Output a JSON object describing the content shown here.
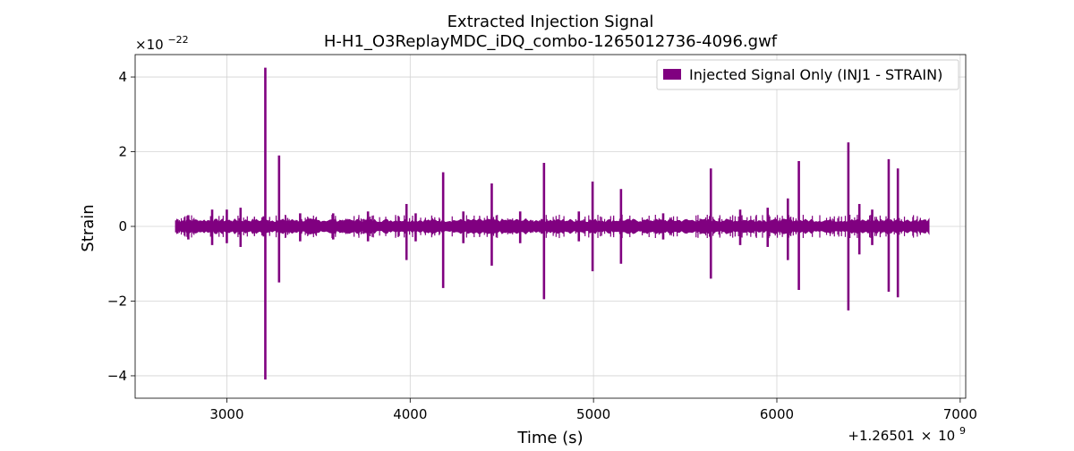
{
  "chart_data": {
    "type": "line",
    "title_line1": "Extracted Injection Signal",
    "title_line2": "H-H1_O3ReplayMDC_iDQ_combo-1265012736-4096.gwf",
    "xlabel": "Time (s)",
    "ylabel": "Strain",
    "x_offset_label_base": "+1.26501",
    "x_offset_label_times": "×",
    "x_offset_label_mant": "10",
    "x_offset_label_exp": "9",
    "y_scale_label_base": "×10",
    "y_scale_label_exp": "−22",
    "xlim": [
      2500,
      7030
    ],
    "ylim": [
      -4.6,
      4.6
    ],
    "x_ticks": [
      3000,
      4000,
      5000,
      6000,
      7000
    ],
    "x_tick_labels": [
      "3000",
      "4000",
      "5000",
      "6000",
      "7000"
    ],
    "y_ticks": [
      -4,
      -2,
      0,
      2,
      4
    ],
    "y_tick_labels": [
      "−4",
      "−2",
      "0",
      "2",
      "4"
    ],
    "grid": true,
    "legend_position": "top-right",
    "series": [
      {
        "name": "Injected Signal Only (INJ1 - STRAIN)",
        "color": "#800080",
        "x_range": [
          2720,
          6830
        ],
        "baseline_amplitude": 0.15,
        "spikes": [
          {
            "x": 2790,
            "hi": 0.3,
            "lo": -0.35
          },
          {
            "x": 2920,
            "hi": 0.45,
            "lo": -0.5
          },
          {
            "x": 3000,
            "hi": 0.45,
            "lo": -0.45
          },
          {
            "x": 3075,
            "hi": 0.5,
            "lo": -0.55
          },
          {
            "x": 3210,
            "hi": 4.25,
            "lo": -4.1
          },
          {
            "x": 3285,
            "hi": 1.9,
            "lo": -1.5
          },
          {
            "x": 3400,
            "hi": 0.35,
            "lo": -0.4
          },
          {
            "x": 3580,
            "hi": 0.35,
            "lo": -0.35
          },
          {
            "x": 3770,
            "hi": 0.4,
            "lo": -0.4
          },
          {
            "x": 3980,
            "hi": 0.6,
            "lo": -0.9
          },
          {
            "x": 4030,
            "hi": 0.35,
            "lo": -0.4
          },
          {
            "x": 4180,
            "hi": 1.45,
            "lo": -1.65
          },
          {
            "x": 4290,
            "hi": 0.4,
            "lo": -0.45
          },
          {
            "x": 4445,
            "hi": 1.15,
            "lo": -1.05
          },
          {
            "x": 4600,
            "hi": 0.4,
            "lo": -0.45
          },
          {
            "x": 4730,
            "hi": 1.7,
            "lo": -1.95
          },
          {
            "x": 4920,
            "hi": 0.4,
            "lo": -0.4
          },
          {
            "x": 4995,
            "hi": 1.2,
            "lo": -1.2
          },
          {
            "x": 5150,
            "hi": 1.0,
            "lo": -1.0
          },
          {
            "x": 5380,
            "hi": 0.35,
            "lo": -0.35
          },
          {
            "x": 5640,
            "hi": 1.55,
            "lo": -1.4
          },
          {
            "x": 5800,
            "hi": 0.45,
            "lo": -0.5
          },
          {
            "x": 5950,
            "hi": 0.5,
            "lo": -0.55
          },
          {
            "x": 6060,
            "hi": 0.75,
            "lo": -0.9
          },
          {
            "x": 6120,
            "hi": 1.75,
            "lo": -1.7
          },
          {
            "x": 6390,
            "hi": 2.25,
            "lo": -2.25
          },
          {
            "x": 6450,
            "hi": 0.6,
            "lo": -0.75
          },
          {
            "x": 6520,
            "hi": 0.45,
            "lo": -0.5
          },
          {
            "x": 6610,
            "hi": 1.8,
            "lo": -1.75
          },
          {
            "x": 6660,
            "hi": 1.55,
            "lo": -1.9
          }
        ]
      }
    ]
  }
}
